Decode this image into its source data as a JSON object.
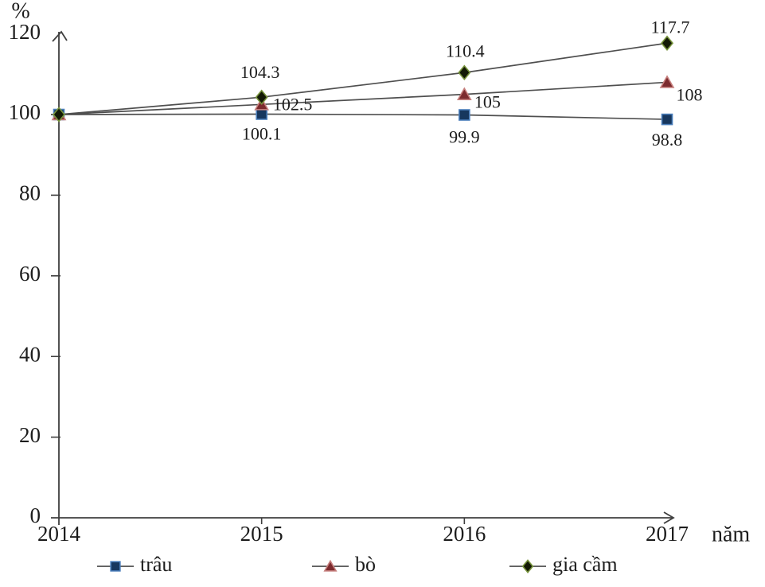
{
  "chart_data": {
    "type": "line",
    "title": "",
    "xlabel": "năm",
    "ylabel": "%",
    "x": [
      2014,
      2015,
      2016,
      2017
    ],
    "x_tick_labels": [
      "2014",
      "2015",
      "2016",
      "2017"
    ],
    "ylim": [
      0,
      120
    ],
    "yticks": [
      0,
      20,
      40,
      60,
      80,
      100,
      120
    ],
    "grid": "off",
    "legend_position": "bottom",
    "axis_color": "#3f3f3f",
    "line_color": "#4f4f4f",
    "text_color": "#1d1d1d",
    "series": [
      {
        "name": "trâu",
        "marker": "square",
        "marker_fill": "#17375e",
        "marker_edge": "#4a7ebb",
        "values": [
          100,
          100.1,
          99.9,
          98.8
        ],
        "point_labels": [
          "",
          "100.1",
          "99.9",
          "98.8"
        ]
      },
      {
        "name": "bò",
        "marker": "triangle",
        "marker_fill": "#7c2b2e",
        "marker_edge": "#c67f7d",
        "values": [
          100,
          102.5,
          105,
          108
        ],
        "point_labels": [
          "",
          "102.5",
          "105",
          "108"
        ]
      },
      {
        "name": "gia cầm",
        "marker": "diamond",
        "marker_fill": "#141a06",
        "marker_edge": "#77933c",
        "values": [
          100,
          104.3,
          110.4,
          117.7
        ],
        "point_labels": [
          "",
          "104.3",
          "110.4",
          "117.7"
        ]
      }
    ]
  }
}
